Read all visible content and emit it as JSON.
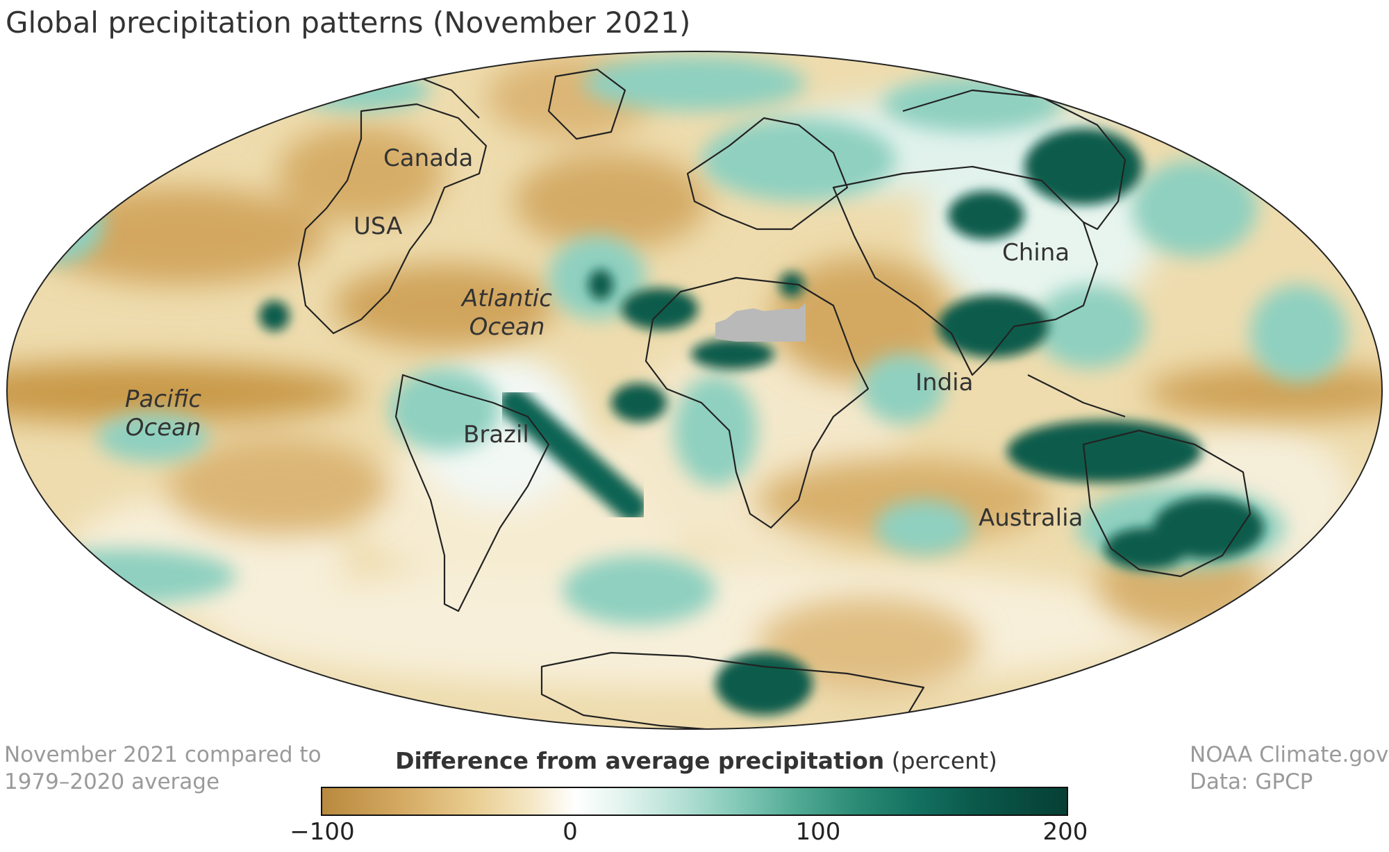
{
  "title": "Global precipitation patterns (November 2021)",
  "map_labels": {
    "canada": "Canada",
    "usa": "USA",
    "atlantic_line1": "Atlantic",
    "atlantic_line2": "Ocean",
    "pacific_line1": "Pacific",
    "pacific_line2": "Ocean",
    "brazil": "Brazil",
    "china": "China",
    "india": "India",
    "australia": "Australia"
  },
  "footnote_left": {
    "line1": "November 2021 compared to",
    "line2": "1979–2020 average"
  },
  "footnote_right": {
    "line1": "NOAA Climate.gov",
    "line2": "Data: GPCP"
  },
  "legend": {
    "title_bold": "Difference from average precipitation",
    "title_unit": "(percent)",
    "ticks": [
      "−100",
      "0",
      "100",
      "200"
    ],
    "range": [
      -100,
      200
    ]
  },
  "colors": {
    "dry": "#b88a3e",
    "neutral": "#ffffff",
    "wet": "#063f34",
    "no_data": "#b9b9b9"
  }
}
